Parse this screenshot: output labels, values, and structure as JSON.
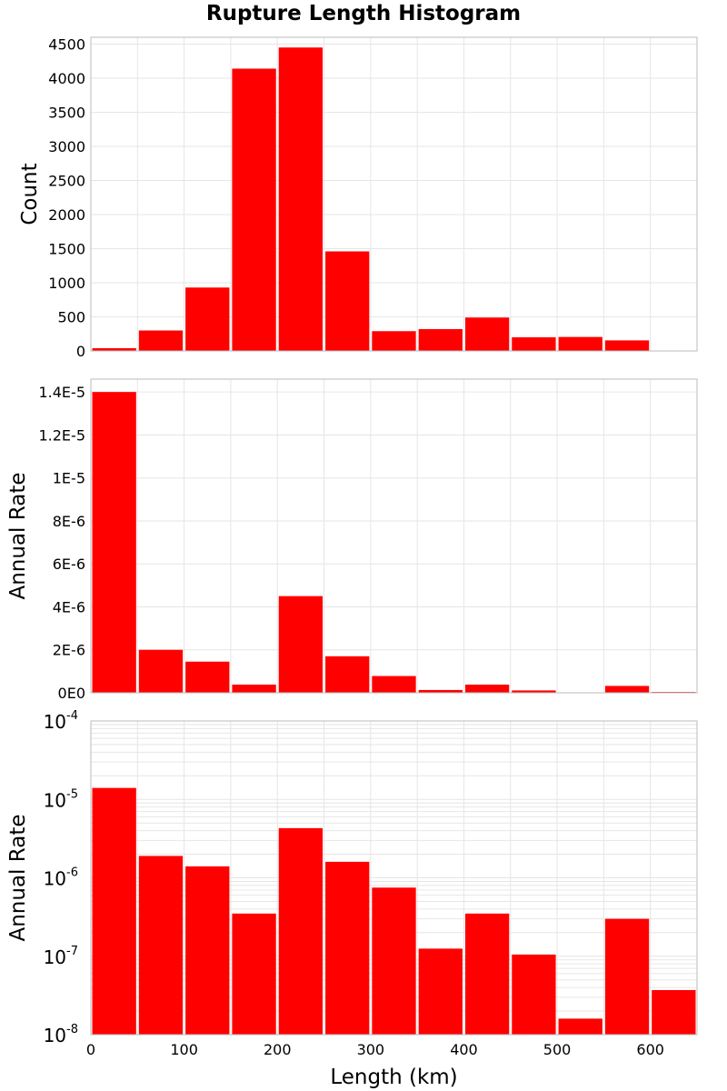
{
  "title": "Rupture Length Histogram",
  "colors": {
    "bar": "#ff0000",
    "grid": "#e6e6e6",
    "frame": "#bbbbbb"
  },
  "chart_data": [
    {
      "type": "bar",
      "ylabel": "Count",
      "xlim": [
        0,
        650
      ],
      "ylim": [
        0,
        4600
      ],
      "y_ticks": [
        0,
        500,
        1000,
        1500,
        2000,
        2500,
        3000,
        3500,
        4000,
        4500
      ],
      "y_tick_labels": [
        "0",
        "500",
        "1000",
        "1500",
        "2000",
        "2500",
        "3000",
        "3500",
        "4000",
        "4500"
      ],
      "grid": true,
      "bin_width": 50,
      "x": [
        25,
        75,
        125,
        175,
        225,
        275,
        325,
        375,
        425,
        475,
        525,
        575,
        625
      ],
      "values": [
        40,
        300,
        930,
        4140,
        4450,
        1460,
        290,
        320,
        490,
        200,
        205,
        155,
        5
      ]
    },
    {
      "type": "bar",
      "ylabel": "Annual Rate",
      "xlim": [
        0,
        650
      ],
      "ylim": [
        0,
        1.46e-05
      ],
      "y_ticks": [
        0,
        2e-06,
        4e-06,
        6e-06,
        8e-06,
        1e-05,
        1.2e-05,
        1.4e-05
      ],
      "y_tick_labels": [
        "0E0",
        "2E-6",
        "4E-6",
        "6E-6",
        "8E-6",
        "1E-5",
        "1.2E-5",
        "1.4E-5"
      ],
      "grid": true,
      "bin_width": 50,
      "x": [
        25,
        75,
        125,
        175,
        225,
        275,
        325,
        375,
        425,
        475,
        525,
        575,
        625
      ],
      "values": [
        1.4e-05,
        2e-06,
        1.45e-06,
        3.8e-07,
        4.5e-06,
        1.7e-06,
        7.8e-07,
        1.3e-07,
        3.8e-07,
        1.1e-07,
        1.6e-08,
        3.2e-07,
        3.8e-08
      ]
    },
    {
      "type": "bar",
      "ylabel": "Annual Rate",
      "xlabel": "Length (km)",
      "y_scale": "log",
      "xlim": [
        0,
        650
      ],
      "ylim": [
        1e-08,
        0.0001
      ],
      "x_ticks": [
        0,
        100,
        200,
        300,
        400,
        500,
        600
      ],
      "x_tick_labels": [
        "0",
        "100",
        "200",
        "300",
        "400",
        "500",
        "600"
      ],
      "y_tick_labels": [
        {
          "base": "10",
          "exp": "-8"
        },
        {
          "base": "10",
          "exp": "-7"
        },
        {
          "base": "10",
          "exp": "-6"
        },
        {
          "base": "10",
          "exp": "-5"
        },
        {
          "base": "10",
          "exp": "-4"
        }
      ],
      "grid": true,
      "bin_width": 50,
      "x": [
        25,
        75,
        125,
        175,
        225,
        275,
        325,
        375,
        425,
        475,
        525,
        575,
        625
      ],
      "values": [
        1.4e-05,
        1.9e-06,
        1.4e-06,
        3.5e-07,
        4.3e-06,
        1.6e-06,
        7.5e-07,
        1.25e-07,
        3.5e-07,
        1.05e-07,
        1.6e-08,
        3e-07,
        3.7e-08
      ]
    }
  ]
}
